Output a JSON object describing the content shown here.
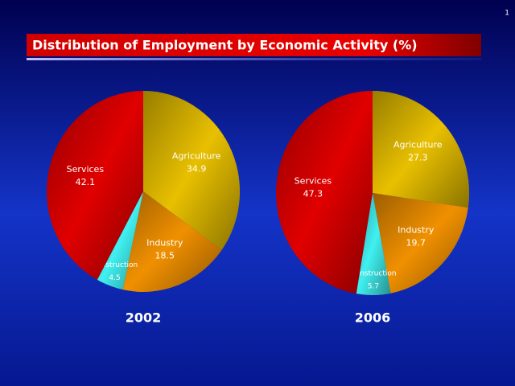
{
  "page_number": "1",
  "title": "Distribution of Employment by Economic Activity (%)",
  "chart_data": [
    {
      "type": "pie",
      "title": "2002",
      "categories": [
        "Agriculture",
        "Industry",
        "Construction",
        "Services"
      ],
      "values": [
        34.9,
        18.5,
        4.5,
        42.1
      ],
      "colors": [
        "#e8c000",
        "#f09000",
        "#40f0f0",
        "#e00000"
      ]
    },
    {
      "type": "pie",
      "title": "2006",
      "categories": [
        "Agriculture",
        "Industry",
        "Construction",
        "Services"
      ],
      "values": [
        27.3,
        19.7,
        5.7,
        47.3
      ],
      "colors": [
        "#e8c000",
        "#f09000",
        "#40f0f0",
        "#e00000"
      ]
    }
  ]
}
